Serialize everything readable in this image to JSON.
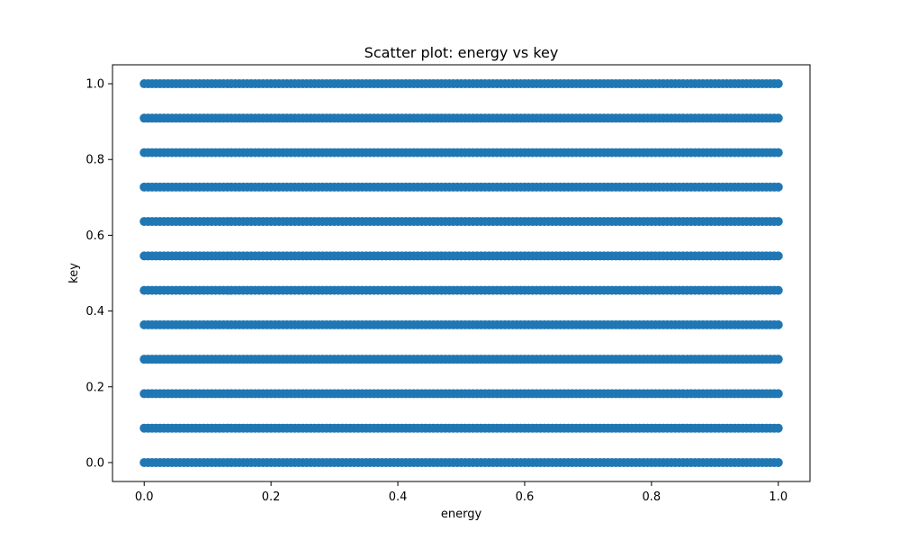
{
  "chart_data": {
    "type": "scatter",
    "title": "Scatter plot: energy vs key",
    "xlabel": "energy",
    "ylabel": "key",
    "xlim": [
      -0.05,
      1.05
    ],
    "ylim": [
      -0.05,
      1.05
    ],
    "x_ticks": [
      0.0,
      0.2,
      0.4,
      0.6,
      0.8,
      1.0
    ],
    "x_tick_labels": [
      "0.0",
      "0.2",
      "0.4",
      "0.6",
      "0.8",
      "1.0"
    ],
    "y_ticks": [
      0.0,
      0.2,
      0.4,
      0.6,
      0.8,
      1.0
    ],
    "y_tick_labels": [
      "0.0",
      "0.2",
      "0.4",
      "0.6",
      "0.8",
      "1.0"
    ],
    "grid": false,
    "legend": "none",
    "marker_color": "#1f77b4",
    "series": [
      {
        "y_levels": [
          0.0,
          0.0909,
          0.1818,
          0.2727,
          0.3636,
          0.4545,
          0.5455,
          0.6364,
          0.7273,
          0.8182,
          0.9091,
          1.0
        ],
        "x_range": [
          0.0,
          1.0
        ],
        "note_shape": "points span full x range at each y level"
      }
    ]
  }
}
